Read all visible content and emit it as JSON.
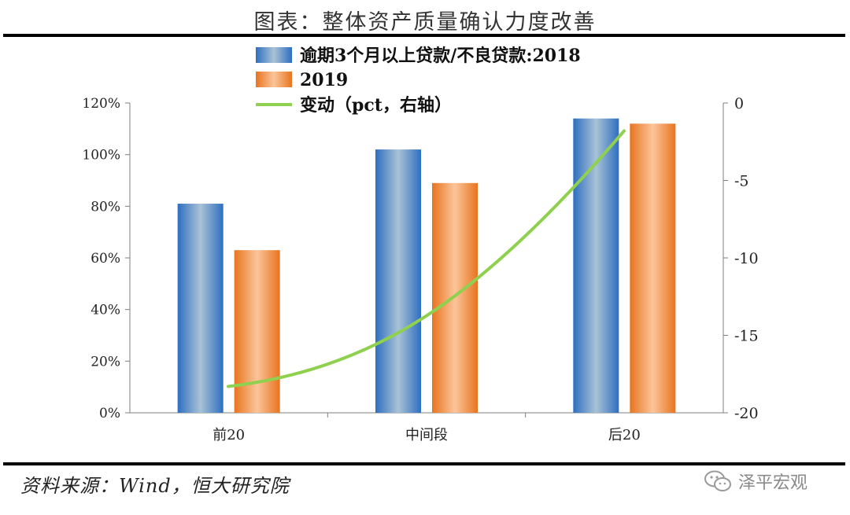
{
  "title": "图表：整体资产质量确认力度改善",
  "source": "资料来源：Wind，恒大研究院",
  "watermark": "泽平宏观",
  "colors": {
    "bar_2018_light": "#a9c2d6",
    "bar_2018_dark": "#2e6fc0",
    "bar_2019_light": "#fbc59a",
    "bar_2019_dark": "#e8741f",
    "line": "#8fd14f",
    "axis": "#7f7f7f",
    "text": "#222222"
  },
  "chart_data": {
    "type": "bar",
    "categories": [
      "前20",
      "中间段",
      "后20"
    ],
    "series": [
      {
        "name": "逾期3个月以上贷款/不良贷款:2018",
        "type": "bar",
        "axis": "left",
        "values": [
          81,
          102,
          114
        ]
      },
      {
        "name": "2019",
        "type": "bar",
        "axis": "left",
        "values": [
          63,
          89,
          112
        ]
      },
      {
        "name": "变动（pct，右轴）",
        "type": "line",
        "axis": "right",
        "values": [
          -18.3,
          -13.8,
          -1.8
        ]
      }
    ],
    "ylim_left": [
      0,
      120
    ],
    "yticks_left": [
      "0%",
      "20%",
      "40%",
      "60%",
      "80%",
      "100%",
      "120%"
    ],
    "ylim_right": [
      -20,
      0
    ],
    "yticks_right": [
      "-20",
      "-15",
      "-10",
      "-5",
      "0"
    ],
    "legend_position": "top-center",
    "grid": false
  }
}
